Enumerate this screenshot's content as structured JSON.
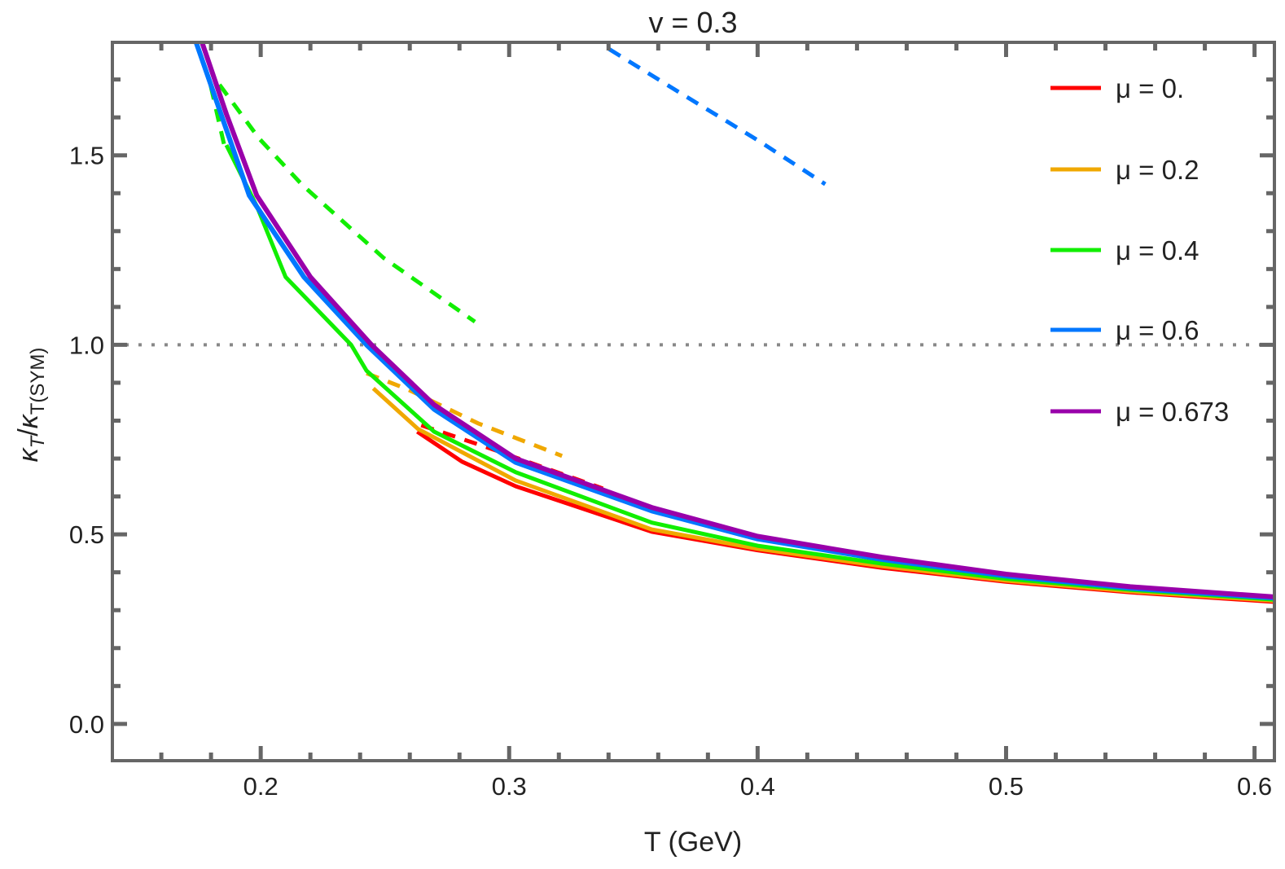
{
  "chart_data": {
    "type": "line",
    "title": "v = 0.3",
    "xlabel": "T (GeV)",
    "ylabel": {
      "kappa1": "κ",
      "sub1": "T",
      "slash": "/",
      "kappa2": "κ",
      "sub2": "T(SYM)"
    },
    "xlim": [
      0.1403,
      0.608
    ],
    "ylim": [
      -0.097,
      1.798
    ],
    "xticks": [
      0.2,
      0.3,
      0.4,
      0.5,
      0.6
    ],
    "xtick_labels": [
      "0.2",
      "0.3",
      "0.4",
      "0.5",
      "0.6"
    ],
    "yticks": [
      0.0,
      0.5,
      1.0,
      1.5
    ],
    "ytick_labels": [
      "0.0",
      "0.5",
      "1.0",
      "1.5"
    ],
    "x_minor_step": 0.02,
    "y_minor_step": 0.1,
    "grid": false,
    "reference_line": {
      "y": 1.0,
      "style": "dotted",
      "color": "#888888"
    },
    "legend_position": "top-right",
    "series": [
      {
        "name": "μ = 0.",
        "color": "#ff0000",
        "solid": [
          [
            0.263,
            0.771
          ],
          [
            0.281,
            0.692
          ],
          [
            0.3026,
            0.627
          ],
          [
            0.3574,
            0.507
          ],
          [
            0.4,
            0.458
          ],
          [
            0.45,
            0.412
          ],
          [
            0.5,
            0.375
          ],
          [
            0.55,
            0.347
          ],
          [
            0.608,
            0.322
          ]
        ],
        "dashed": [
          [
            0.2646,
            0.788
          ],
          [
            0.2918,
            0.728
          ],
          [
            0.3377,
            0.621
          ]
        ]
      },
      {
        "name": "μ = 0.2",
        "color": "#f0a800",
        "solid": [
          [
            0.2453,
            0.885
          ],
          [
            0.2633,
            0.778
          ],
          [
            0.3026,
            0.642
          ],
          [
            0.3574,
            0.513
          ],
          [
            0.4,
            0.462
          ],
          [
            0.45,
            0.416
          ],
          [
            0.5,
            0.378
          ],
          [
            0.55,
            0.35
          ],
          [
            0.608,
            0.325
          ]
        ],
        "dashed": [
          [
            0.2426,
            0.925
          ],
          [
            0.259,
            0.883
          ],
          [
            0.2875,
            0.793
          ],
          [
            0.3213,
            0.707
          ]
        ]
      },
      {
        "name": "μ = 0.4",
        "color": "#11ee00",
        "solid": [
          [
            0.1862,
            1.527
          ],
          [
            0.1984,
            1.366
          ],
          [
            0.21,
            1.179
          ],
          [
            0.2364,
            1.0
          ],
          [
            0.2426,
            0.932
          ],
          [
            0.2698,
            0.771
          ],
          [
            0.3026,
            0.664
          ],
          [
            0.3574,
            0.531
          ],
          [
            0.4,
            0.47
          ],
          [
            0.45,
            0.423
          ],
          [
            0.5,
            0.383
          ],
          [
            0.55,
            0.354
          ],
          [
            0.608,
            0.328
          ]
        ],
        "dashed": [
          [
            0.1852,
            1.53
          ],
          [
            0.18,
            1.68
          ],
          [
            0.183,
            1.69
          ],
          [
            0.1993,
            1.545
          ],
          [
            0.2167,
            1.422
          ],
          [
            0.2495,
            1.229
          ],
          [
            0.2862,
            1.061
          ]
        ]
      },
      {
        "name": "μ = 0.6",
        "color": "#0077ff",
        "solid": [
          [
            0.174,
            1.798
          ],
          [
            0.1954,
            1.394
          ],
          [
            0.2174,
            1.179
          ],
          [
            0.2426,
            1.0
          ],
          [
            0.2698,
            0.83
          ],
          [
            0.3026,
            0.69
          ],
          [
            0.3574,
            0.562
          ],
          [
            0.4,
            0.488
          ],
          [
            0.45,
            0.434
          ],
          [
            0.5,
            0.39
          ],
          [
            0.55,
            0.358
          ],
          [
            0.608,
            0.332
          ]
        ],
        "dashed": [
          [
            0.3403,
            1.78
          ],
          [
            0.37,
            1.66
          ],
          [
            0.4,
            1.54
          ],
          [
            0.4272,
            1.424
          ]
        ]
      },
      {
        "name": "μ = 0.673",
        "color": "#9900aa",
        "solid": [
          [
            0.1764,
            1.798
          ],
          [
            0.1862,
            1.609
          ],
          [
            0.1984,
            1.394
          ],
          [
            0.22,
            1.179
          ],
          [
            0.2446,
            1.0
          ],
          [
            0.2698,
            0.842
          ],
          [
            0.3026,
            0.7
          ],
          [
            0.3574,
            0.571
          ],
          [
            0.4,
            0.495
          ],
          [
            0.45,
            0.44
          ],
          [
            0.5,
            0.395
          ],
          [
            0.55,
            0.362
          ],
          [
            0.608,
            0.335
          ]
        ],
        "dashed": []
      }
    ]
  }
}
